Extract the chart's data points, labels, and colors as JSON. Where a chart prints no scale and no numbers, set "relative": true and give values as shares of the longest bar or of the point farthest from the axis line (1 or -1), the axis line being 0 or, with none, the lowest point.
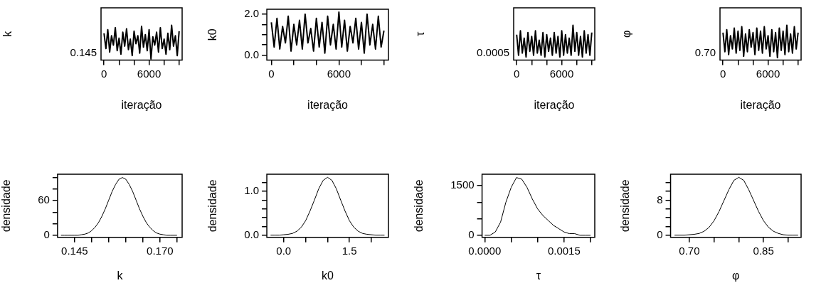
{
  "chart_data": [
    {
      "type": "line",
      "xlabel": "iteração",
      "ylabel": "k",
      "relative": true,
      "annotations": [
        "0.145"
      ],
      "x": [
        0,
        250,
        500,
        750,
        1000,
        1250,
        1500,
        1750,
        2000,
        2250,
        2500,
        2750,
        3000,
        3250,
        3500,
        3750,
        4000,
        4250,
        4500,
        4750,
        5000,
        5250,
        5500,
        5750,
        6000,
        6250,
        6500,
        6750,
        7000,
        7250,
        7500,
        7750,
        8000,
        8250,
        8500,
        8750,
        9000,
        9250,
        9500,
        9750,
        10000
      ],
      "series": [
        {
          "color": "#000000",
          "values": [
            0.77,
            0.33,
            0.87,
            0.23,
            0.7,
            0.43,
            0.93,
            0.27,
            0.63,
            0.17,
            0.8,
            0.4,
            0.9,
            0.3,
            0.6,
            0.13,
            0.83,
            0.47,
            0.7,
            0.2,
            0.97,
            0.37,
            0.73,
            0.27,
            0.87,
            0.03,
            0.67,
            0.43,
            0.8,
            0.23,
            0.93,
            0.33,
            0.6,
            0.17,
            0.77,
            0.3,
            1,
            0.4,
            0.7,
            0.13,
            0.83
          ]
        }
      ],
      "xlim": [
        -400,
        10400
      ],
      "xticks": [
        0,
        {
          "value": 2000,
          "label": null
        },
        {
          "value": 4000,
          "label": null
        },
        6000,
        {
          "value": 8000,
          "label": null
        },
        {
          "value": 10000,
          "label": null
        }
      ]
    },
    {
      "type": "line",
      "xlabel": "iteração",
      "ylabel": "k0",
      "x": [
        0,
        250,
        500,
        750,
        1000,
        1250,
        1500,
        1750,
        2000,
        2250,
        2500,
        2750,
        3000,
        3250,
        3500,
        3750,
        4000,
        4250,
        4500,
        4750,
        5000,
        5250,
        5500,
        5750,
        6000,
        6250,
        6500,
        6750,
        7000,
        7250,
        7500,
        7750,
        8000,
        8250,
        8500,
        8750,
        9000,
        9250,
        9500,
        9750,
        10000
      ],
      "series": [
        {
          "color": "#000000",
          "values": [
            1.6,
            0.4,
            1.8,
            0.3,
            1.4,
            0.6,
            1.9,
            0.2,
            1.5,
            0.5,
            1.7,
            0.3,
            2.0,
            0.6,
            1.3,
            0.2,
            1.8,
            0.4,
            1.6,
            0.1,
            1.9,
            0.5,
            1.5,
            0.3,
            2.1,
            0.4,
            1.7,
            0.2,
            1.4,
            0.6,
            1.8,
            0.3,
            1.6,
            0.1,
            2.0,
            0.5,
            1.5,
            0.3,
            1.9,
            0.4,
            1.2
          ]
        }
      ],
      "xlim": [
        -400,
        10400
      ],
      "ylim": [
        -0.24,
        2.24
      ],
      "xticks": [
        0,
        {
          "value": 2000,
          "label": null
        },
        {
          "value": 4000,
          "label": null
        },
        6000,
        {
          "value": 8000,
          "label": null
        },
        {
          "value": 10000,
          "label": null
        }
      ],
      "yticks": [
        {
          "value": 0,
          "label": "0.0"
        },
        {
          "value": 0.5,
          "label": null
        },
        {
          "value": 1,
          "label": null
        },
        {
          "value": 1.5,
          "label": null
        },
        {
          "value": 2,
          "label": "2.0"
        }
      ]
    },
    {
      "type": "line",
      "xlabel": "iteração",
      "ylabel": "τ",
      "relative": true,
      "annotations": [
        "0.0005"
      ],
      "x": [
        0,
        250,
        500,
        750,
        1000,
        1250,
        1500,
        1750,
        2000,
        2250,
        2500,
        2750,
        3000,
        3250,
        3500,
        3750,
        4000,
        4250,
        4500,
        4750,
        5000,
        5250,
        5500,
        5750,
        6000,
        6250,
        6500,
        6750,
        7000,
        7250,
        7500,
        7750,
        8000,
        8250,
        8500,
        8750,
        9000,
        9250,
        9500,
        9750,
        10000
      ],
      "series": [
        {
          "color": "#000000",
          "values": [
            0.73,
            0.14,
            0.84,
            0.2,
            0.63,
            0.09,
            0.79,
            0.25,
            0.68,
            0.14,
            0.84,
            0.2,
            0.57,
            0.14,
            0.79,
            0.09,
            0.73,
            0.25,
            0.63,
            0.14,
            0.79,
            0.2,
            0.68,
            0.09,
            0.84,
            0.14,
            0.73,
            0.2,
            0.63,
            0.14,
            1,
            0.25,
            0.79,
            0.14,
            0.68,
            0.09,
            0.84,
            0.2,
            0.73,
            0.14,
            0.79
          ]
        }
      ],
      "xlim": [
        -400,
        10400
      ],
      "xticks": [
        0,
        {
          "value": 2000,
          "label": null
        },
        {
          "value": 4000,
          "label": null
        },
        6000,
        {
          "value": 8000,
          "label": null
        },
        {
          "value": 10000,
          "label": null
        }
      ]
    },
    {
      "type": "line",
      "xlabel": "iteração",
      "ylabel": "φ",
      "relative": true,
      "annotations": [
        "0.70"
      ],
      "x": [
        0,
        250,
        500,
        750,
        1000,
        1250,
        1500,
        1750,
        2000,
        2250,
        2500,
        2750,
        3000,
        3250,
        3500,
        3750,
        4000,
        4250,
        4500,
        4750,
        5000,
        5250,
        5500,
        5750,
        6000,
        6250,
        6500,
        6750,
        7000,
        7250,
        7500,
        7750,
        8000,
        8250,
        8500,
        8750,
        9000,
        9250,
        9500,
        9750,
        10000
      ],
      "series": [
        {
          "color": "#000000",
          "values": [
            0.79,
            0.24,
            0.87,
            0.16,
            0.7,
            0.32,
            0.92,
            0.2,
            0.83,
            0.28,
            0.96,
            0.11,
            0.75,
            0.24,
            0.87,
            0.37,
            0.79,
            0.16,
            0.92,
            0.28,
            0.83,
            0.2,
            0.96,
            0.32,
            0.7,
            0.11,
            0.87,
            0.24,
            0.79,
            0.07,
            0.92,
            0.28,
            0.83,
            0.16,
            1,
            0.24,
            0.75,
            0.2,
            0.96,
            0.32,
            0.79
          ]
        }
      ],
      "xlim": [
        -400,
        10400
      ],
      "xticks": [
        0,
        {
          "value": 2000,
          "label": null
        },
        {
          "value": 4000,
          "label": null
        },
        6000,
        {
          "value": 8000,
          "label": null
        },
        {
          "value": 10000,
          "label": null
        }
      ]
    },
    {
      "type": "line",
      "xlabel": "k",
      "ylabel": "densidade",
      "x": [
        0.141,
        0.142,
        0.143,
        0.144,
        0.145,
        0.146,
        0.147,
        0.148,
        0.149,
        0.15,
        0.151,
        0.152,
        0.153,
        0.154,
        0.155,
        0.156,
        0.157,
        0.158,
        0.159,
        0.16,
        0.161,
        0.162,
        0.163,
        0.164,
        0.165,
        0.166,
        0.167,
        0.168,
        0.169,
        0.17,
        0.171,
        0.172,
        0.173,
        0.174,
        0.175
      ],
      "series": [
        {
          "color": "#000000",
          "values": [
            0,
            0,
            0,
            0,
            0,
            0,
            1,
            2,
            4,
            8,
            14,
            22,
            33,
            46,
            61,
            76,
            88,
            97,
            100,
            97,
            88,
            76,
            61,
            46,
            33,
            22,
            14,
            8,
            4,
            2,
            1,
            0,
            0,
            0,
            0
          ]
        }
      ],
      "xlim": [
        0.14,
        0.1765
      ],
      "ylim": [
        -3.6,
        105.7
      ],
      "xticks": [
        0.145,
        {
          "value": 0.15,
          "label": null
        },
        {
          "value": 0.155,
          "label": null
        },
        {
          "value": 0.16,
          "label": null
        },
        {
          "value": 0.165,
          "label": null
        },
        {
          "value": 0.17,
          "label": "0.170"
        },
        {
          "value": 0.175,
          "label": null
        }
      ],
      "yticks": [
        0,
        {
          "value": 20,
          "label": null
        },
        {
          "value": 40,
          "label": null
        },
        60,
        {
          "value": 80,
          "label": null
        },
        {
          "value": 100,
          "label": null
        }
      ]
    },
    {
      "type": "line",
      "xlabel": "k0",
      "ylabel": "densidade",
      "x": [
        -0.3,
        -0.2,
        -0.1,
        0,
        0.1,
        0.2,
        0.3,
        0.4,
        0.5,
        0.6,
        0.7,
        0.8,
        0.9,
        1.0,
        1.1,
        1.2,
        1.3,
        1.4,
        1.5,
        1.6,
        1.7,
        1.8,
        1.9,
        2.0,
        2.1,
        2.2,
        2.3
      ],
      "series": [
        {
          "color": "#000000",
          "values": [
            0,
            0,
            0,
            0.01,
            0.02,
            0.04,
            0.09,
            0.18,
            0.33,
            0.55,
            0.8,
            1.06,
            1.25,
            1.32,
            1.25,
            1.06,
            0.8,
            0.55,
            0.33,
            0.18,
            0.09,
            0.04,
            0.02,
            0.01,
            0,
            0,
            0
          ]
        }
      ],
      "xlim": [
        -0.385,
        2.39
      ],
      "ylim": [
        -0.05,
        1.39
      ],
      "xticks": [
        {
          "value": 0,
          "label": "0.0"
        },
        {
          "value": 0.5,
          "label": null
        },
        {
          "value": 1,
          "label": null
        },
        1.5,
        {
          "value": 2,
          "label": null
        }
      ],
      "yticks": [
        {
          "value": 0,
          "label": "0.0"
        },
        {
          "value": 0.2,
          "label": null
        },
        {
          "value": 0.4,
          "label": null
        },
        {
          "value": 0.6,
          "label": null
        },
        {
          "value": 0.8,
          "label": null
        },
        {
          "value": 1,
          "label": "1.0"
        },
        {
          "value": 1.2,
          "label": null
        }
      ]
    },
    {
      "type": "line",
      "xlabel": "τ",
      "ylabel": "densidade",
      "x": [
        0,
        0.0001,
        0.0002,
        0.0003,
        0.0004,
        0.0005,
        0.0006,
        0.0007,
        0.0008,
        0.0009,
        0.001,
        0.0011,
        0.0012,
        0.0013,
        0.0014,
        0.0015,
        0.0016,
        0.0017,
        0.0018,
        0.0019,
        0.002
      ],
      "series": [
        {
          "color": "#000000",
          "values": [
            0,
            0,
            100,
            400,
            1000,
            1450,
            1750,
            1700,
            1450,
            1100,
            800,
            600,
            450,
            300,
            200,
            100,
            50,
            50,
            0,
            0,
            0
          ]
        }
      ],
      "xlim": [
        -5e-05,
        0.00208
      ],
      "ylim": [
        -63,
        1850
      ],
      "xticks": [
        {
          "value": 0,
          "label": "0.0000"
        },
        {
          "value": 0.0005,
          "label": null
        },
        {
          "value": 0.001,
          "label": null
        },
        0.0015,
        {
          "value": 0.002,
          "label": null
        }
      ],
      "yticks": [
        0,
        {
          "value": 500,
          "label": null
        },
        {
          "value": 1000,
          "label": null
        },
        1500
      ]
    },
    {
      "type": "line",
      "xlabel": "φ",
      "ylabel": "densidade",
      "x": [
        0.67,
        0.68,
        0.69,
        0.7,
        0.71,
        0.72,
        0.73,
        0.74,
        0.75,
        0.76,
        0.77,
        0.78,
        0.79,
        0.8,
        0.81,
        0.82,
        0.83,
        0.84,
        0.85,
        0.86,
        0.87,
        0.88,
        0.89,
        0.9,
        0.91,
        0.92
      ],
      "series": [
        {
          "color": "#000000",
          "values": [
            0,
            0,
            0,
            0.1,
            0.2,
            0.4,
            0.9,
            1.8,
            3.3,
            5.4,
            7.9,
            10.4,
            12.5,
            13.2,
            12.5,
            10.4,
            7.9,
            5.4,
            3.3,
            1.8,
            0.9,
            0.4,
            0.1,
            0,
            0,
            0
          ]
        }
      ],
      "xlim": [
        0.662,
        0.926
      ],
      "ylim": [
        -0.5,
        13.9
      ],
      "xticks": [
        {
          "value": 0.7,
          "label": "0.70"
        },
        {
          "value": 0.75,
          "label": null
        },
        {
          "value": 0.8,
          "label": null
        },
        0.85,
        {
          "value": 0.9,
          "label": null
        }
      ],
      "yticks": [
        0,
        {
          "value": 2,
          "label": null
        },
        {
          "value": 4,
          "label": null
        },
        {
          "value": 6,
          "label": null
        },
        8,
        {
          "value": 10,
          "label": null
        },
        {
          "value": 12,
          "label": null
        }
      ]
    }
  ]
}
